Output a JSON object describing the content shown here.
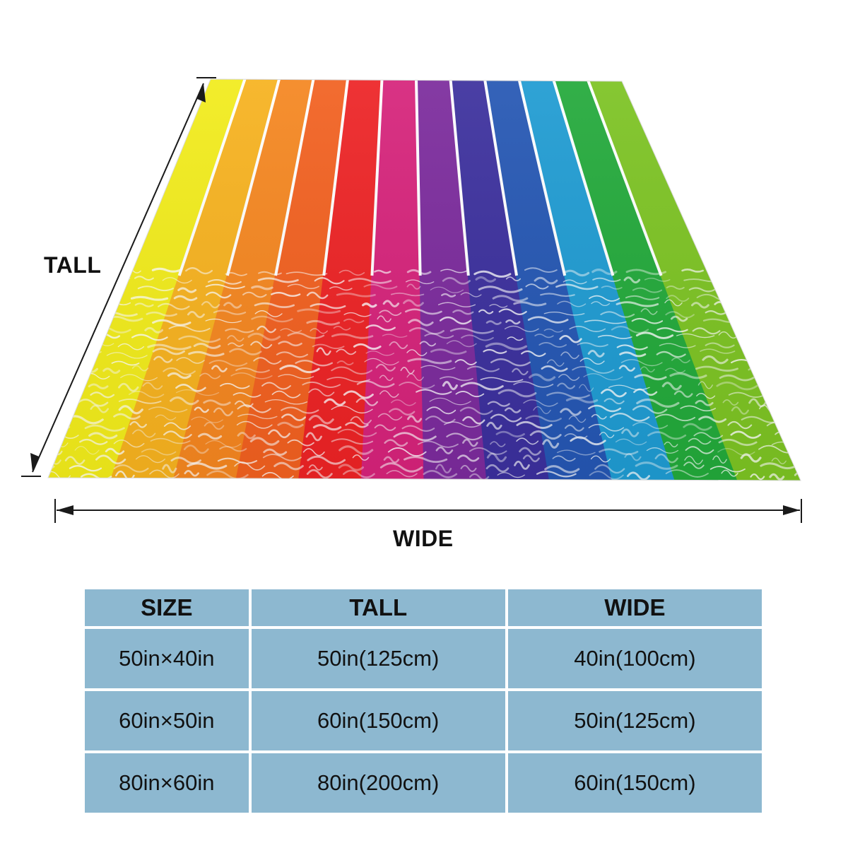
{
  "diagram": {
    "tall_label": "TALL",
    "wide_label": "WIDE",
    "stripe_colors": [
      "#f2ec1a",
      "#f7b21e",
      "#f5861f",
      "#f2601f",
      "#ed2224",
      "#d6227a",
      "#7b2a9c",
      "#3b2f9d",
      "#2456b3",
      "#1e9bd2",
      "#22a93a",
      "#7cc322"
    ],
    "ripple_color": "#ffffff"
  },
  "size_table": {
    "headers": {
      "size": "SIZE",
      "tall": "TALL",
      "wide": "WIDE"
    },
    "rows": [
      {
        "size": "50in×40in",
        "tall": "50in(125cm)",
        "wide": "40in(100cm)"
      },
      {
        "size": "60in×50in",
        "tall": "60in(150cm)",
        "wide": "50in(125cm)"
      },
      {
        "size": "80in×60in",
        "tall": "80in(200cm)",
        "wide": "60in(150cm)"
      }
    ]
  }
}
